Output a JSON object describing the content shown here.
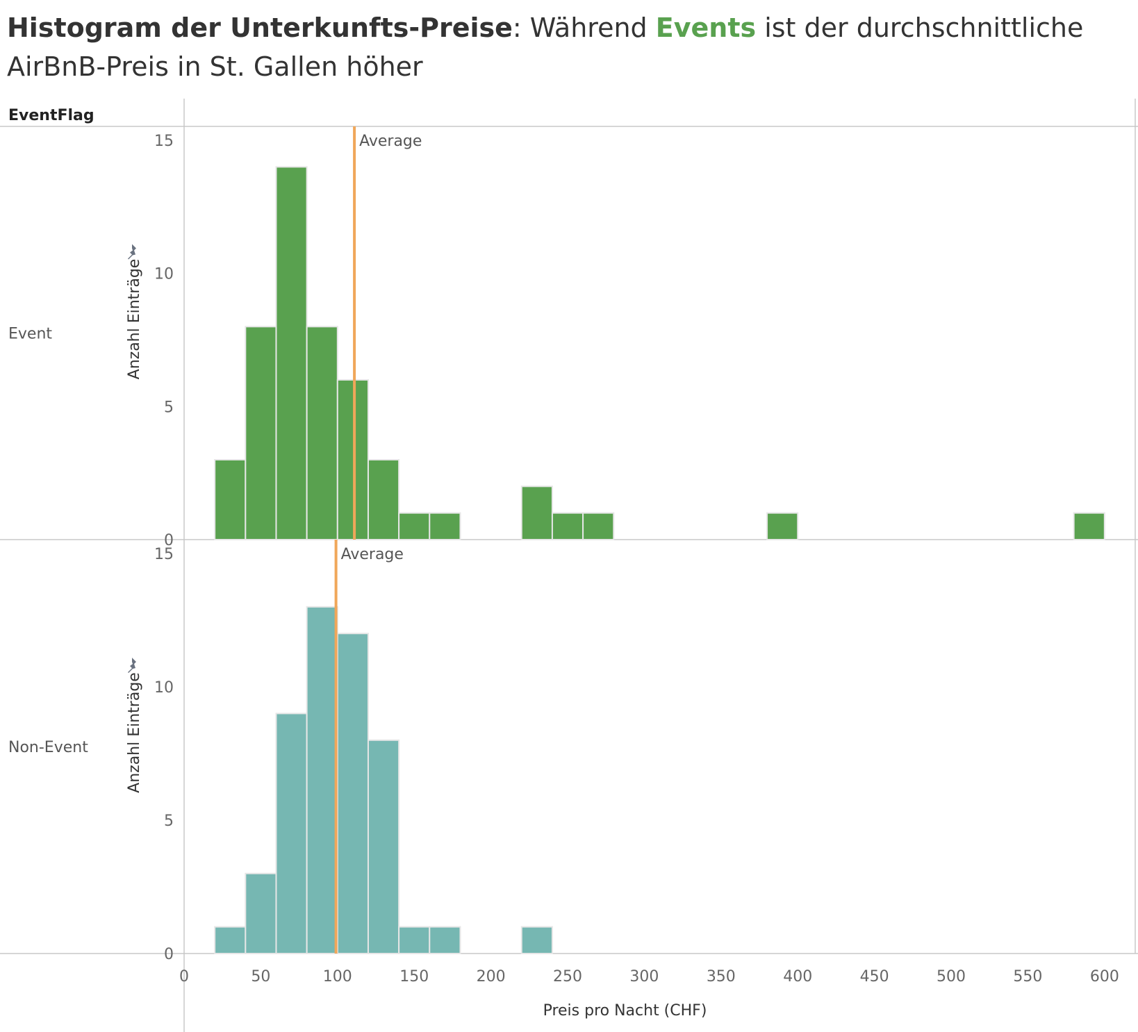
{
  "title": {
    "part1": "Histogram der Unterkunfts-Preise",
    "part2": ": Während ",
    "part3": "Events",
    "part4": " ist der durchschnittliche AirBnB-Preis in St. Gallen höher"
  },
  "colors": {
    "event": "#59a14f",
    "non_event": "#76b7b2",
    "average_line": "#f0a75a",
    "grid": "#d0d0d0"
  },
  "chart_data": {
    "type": "bar",
    "facet_header": "EventFlag",
    "xlabel": "Preis pro Nacht (CHF)",
    "ylabel": "Anzahl Einträge",
    "xlim": [
      0,
      620
    ],
    "ylim": [
      0,
      15
    ],
    "x_ticks": [
      0,
      50,
      100,
      150,
      200,
      250,
      300,
      350,
      400,
      450,
      500,
      550,
      600
    ],
    "y_ticks": [
      0,
      5,
      10,
      15
    ],
    "bin_width": 20,
    "reference_line_label": "Average",
    "series": [
      {
        "name": "Event",
        "average": 111,
        "bins": [
          {
            "x": 20,
            "count": 3
          },
          {
            "x": 40,
            "count": 8
          },
          {
            "x": 60,
            "count": 14
          },
          {
            "x": 80,
            "count": 8
          },
          {
            "x": 100,
            "count": 6
          },
          {
            "x": 120,
            "count": 3
          },
          {
            "x": 140,
            "count": 1
          },
          {
            "x": 160,
            "count": 1
          },
          {
            "x": 220,
            "count": 2
          },
          {
            "x": 240,
            "count": 1
          },
          {
            "x": 260,
            "count": 1
          },
          {
            "x": 380,
            "count": 1
          },
          {
            "x": 580,
            "count": 1
          }
        ]
      },
      {
        "name": "Non-Event",
        "average": 99,
        "bins": [
          {
            "x": 20,
            "count": 1
          },
          {
            "x": 40,
            "count": 3
          },
          {
            "x": 60,
            "count": 9
          },
          {
            "x": 80,
            "count": 13
          },
          {
            "x": 100,
            "count": 12
          },
          {
            "x": 120,
            "count": 8
          },
          {
            "x": 140,
            "count": 1
          },
          {
            "x": 160,
            "count": 1
          },
          {
            "x": 220,
            "count": 1
          }
        ]
      }
    ]
  }
}
